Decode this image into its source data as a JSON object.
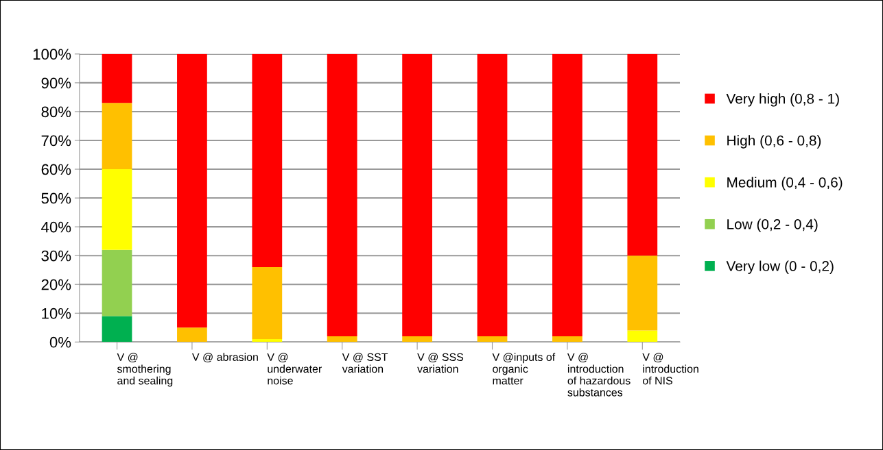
{
  "chart_data": {
    "type": "bar",
    "stacked": true,
    "categories": [
      "V @\nsmothering\nand sealing",
      "V @ abrasion",
      "V @\nunderwater\nnoise",
      "V @ SST\nvariation",
      "V @ SSS\nvariation",
      "V @inputs of\norganic\nmatter",
      "V @\nintroduction\nof hazardous\nsubstances",
      "V @\nintroduction\nof NIS"
    ],
    "series": [
      {
        "name": "Very low (0 - 0,2)",
        "color": "#00b050",
        "values": [
          9,
          0,
          0,
          0,
          0,
          0,
          0,
          0
        ]
      },
      {
        "name": "Low (0,2 - 0,4)",
        "color": "#92d050",
        "values": [
          23,
          0,
          0,
          0,
          0,
          0,
          0,
          0
        ]
      },
      {
        "name": "Medium (0,4 - 0,6)",
        "color": "#ffff00",
        "values": [
          28,
          0,
          1,
          0,
          0,
          0,
          0,
          4
        ]
      },
      {
        "name": "High (0,6 - 0,8)",
        "color": "#ffc000",
        "values": [
          23,
          5,
          25,
          2,
          2,
          2,
          2,
          26
        ]
      },
      {
        "name": "Very high (0,8 - 1)",
        "color": "#ff0000",
        "values": [
          17,
          95,
          74,
          98,
          98,
          98,
          98,
          70
        ]
      }
    ],
    "ylim": [
      0,
      100
    ],
    "yticks": [
      {
        "value": 0,
        "label": "0%"
      },
      {
        "value": 10,
        "label": "10%"
      },
      {
        "value": 20,
        "label": "20%"
      },
      {
        "value": 30,
        "label": "30%"
      },
      {
        "value": 40,
        "label": "40%"
      },
      {
        "value": 50,
        "label": "50%"
      },
      {
        "value": 60,
        "label": "60%"
      },
      {
        "value": 70,
        "label": "70%"
      },
      {
        "value": 80,
        "label": "80%"
      },
      {
        "value": 90,
        "label": "90%"
      },
      {
        "value": 100,
        "label": "100%"
      }
    ],
    "grid": "y",
    "legend": "right"
  }
}
